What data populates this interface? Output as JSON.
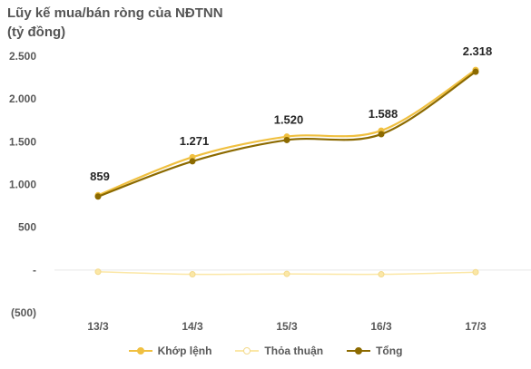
{
  "title_line1": "Lũy kế mua/bán ròng của NĐTNN",
  "title_line2": "(tỷ đồng)",
  "chart_data": {
    "type": "line",
    "categories": [
      "13/3",
      "14/3",
      "15/3",
      "16/3",
      "17/3"
    ],
    "series": [
      {
        "name": "Khớp lệnh",
        "color": "#f0c040",
        "values": [
          875,
          1320,
          1560,
          1630,
          2340
        ]
      },
      {
        "name": "Thỏa thuận",
        "color": "#fbe7a6",
        "values": [
          -20,
          -50,
          -45,
          -50,
          -25
        ]
      },
      {
        "name": "Tổng",
        "color": "#8c6a00",
        "values": [
          859,
          1271,
          1520,
          1588,
          2318
        ]
      }
    ],
    "data_labels": [
      "859",
      "1.271",
      "1.520",
      "1.588",
      "2.318"
    ],
    "y_ticks": [
      2500,
      2000,
      1500,
      1000,
      500,
      0,
      -500
    ],
    "y_tick_labels": [
      "2.500",
      "2.000",
      "1.500",
      "1.000",
      "500",
      "-",
      "(500)"
    ],
    "ylim": [
      -500,
      2500
    ],
    "grid": false,
    "legend_position": "bottom"
  }
}
